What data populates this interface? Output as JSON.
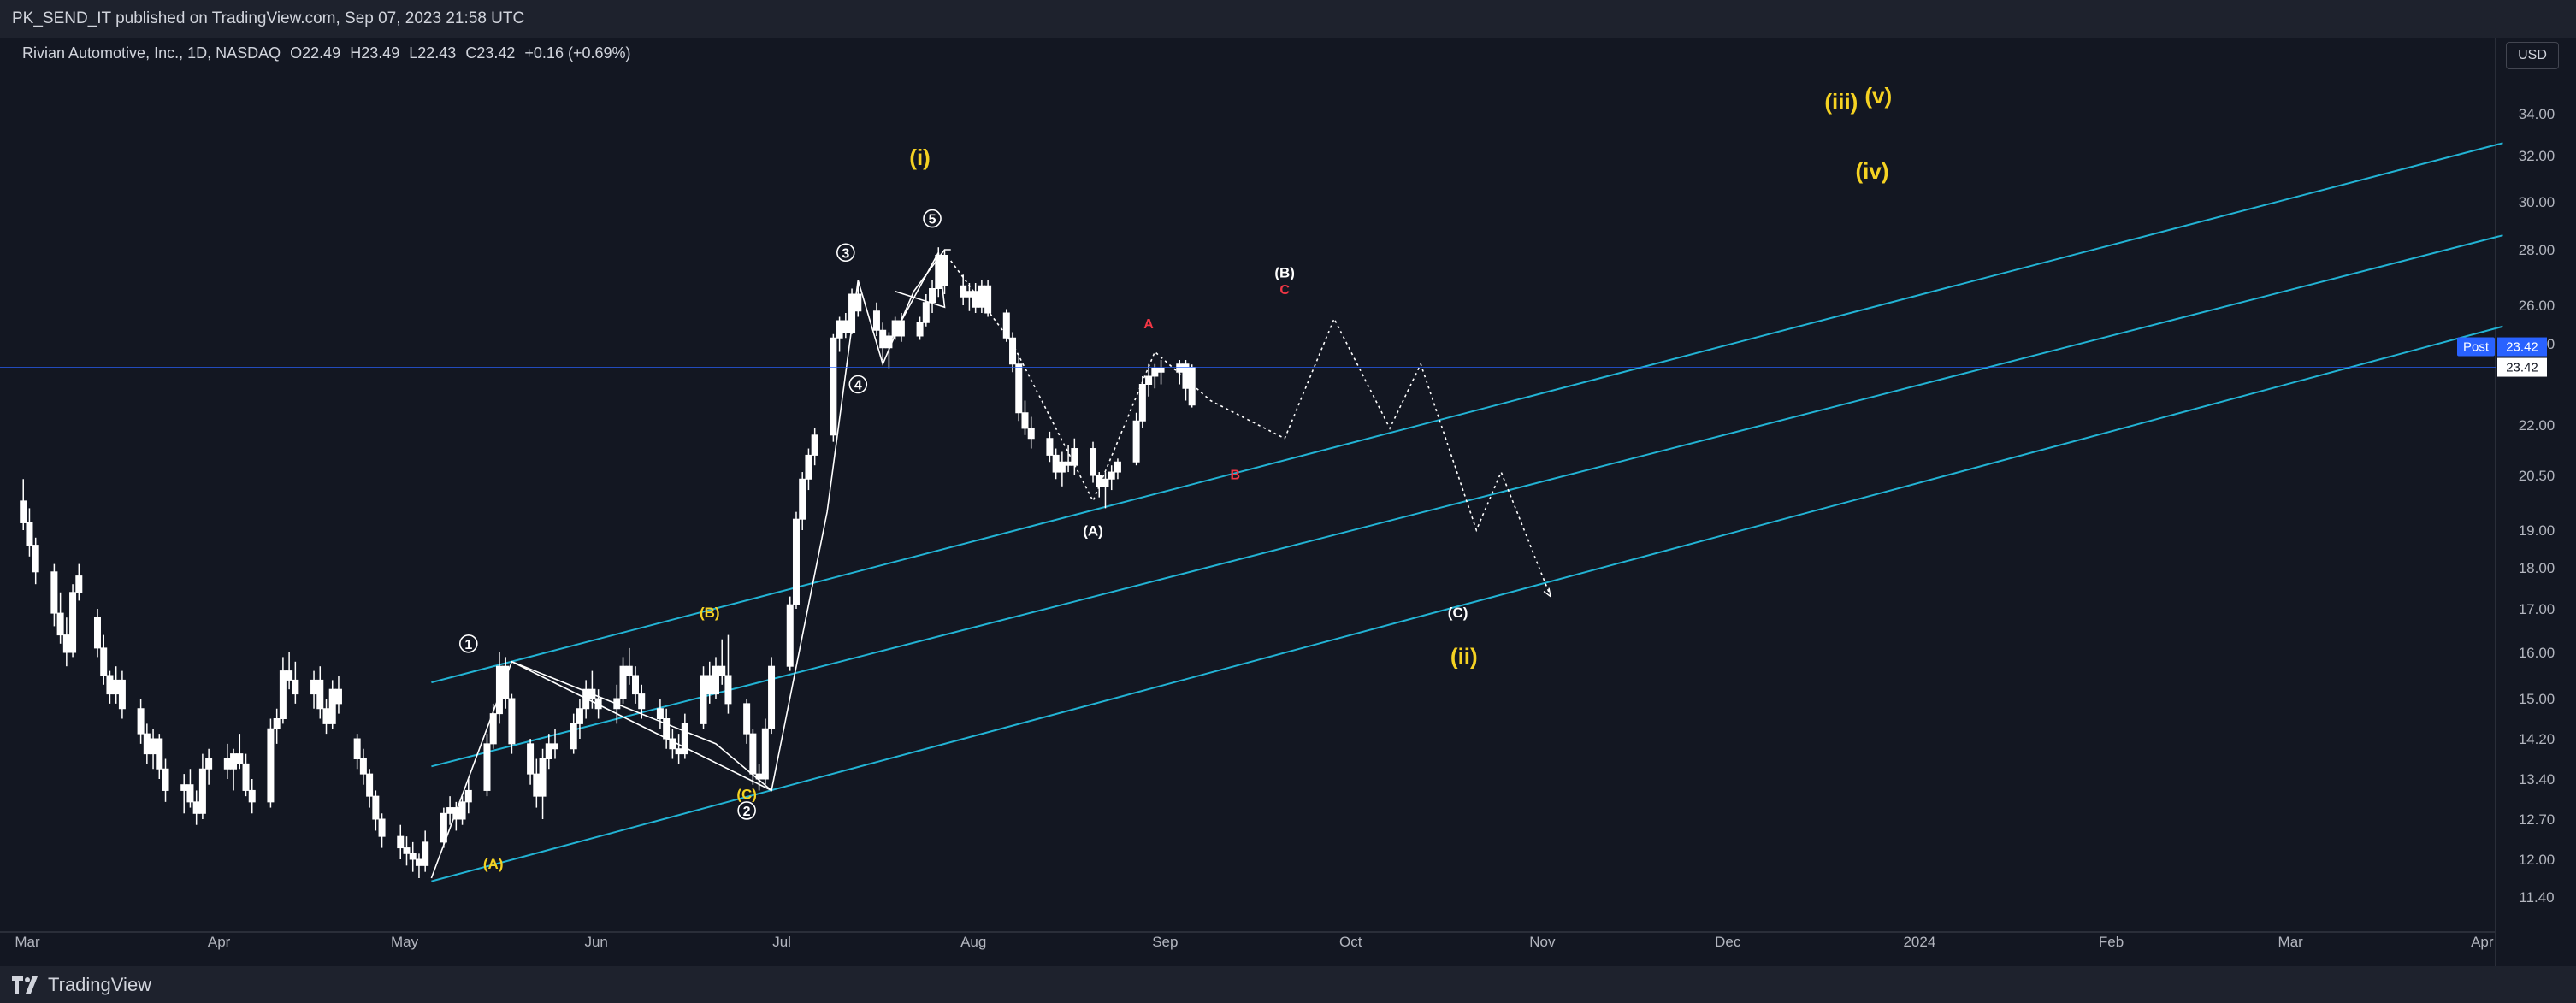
{
  "header": {
    "publish_line": "PK_SEND_IT published on TradingView.com, Sep 07, 2023 21:58 UTC"
  },
  "legend": {
    "symbol": "Rivian Automotive, Inc., 1D, NASDAQ",
    "open": "O22.49",
    "high": "H23.49",
    "low": "L22.43",
    "close": "C23.42",
    "change": "+0.16 (+0.69%)"
  },
  "currency_button": "USD",
  "price_labels": {
    "post_tag": "Post",
    "post_value": "23.42",
    "last_value": "23.42"
  },
  "footer": {
    "brand": "TradingView"
  },
  "colors": {
    "background": "#131722",
    "candle": "#ffffff",
    "channel": "#22b3d4",
    "wave_yellow": "#f5d222",
    "wave_red": "#f23645",
    "price_line": "#2962ff"
  },
  "chart_data": {
    "type": "candlestick",
    "symbol": "RIVN",
    "interval": "1D",
    "y_ticks": [
      34.0,
      32.0,
      30.0,
      28.0,
      26.0,
      24.0,
      22.0,
      20.5,
      19.0,
      18.0,
      17.0,
      16.0,
      15.0,
      14.2,
      13.4,
      12.7,
      12.0,
      11.4
    ],
    "y_tick_labels": [
      "34.00",
      "32.00",
      "30.00",
      "28.00",
      "26.00",
      "24.00",
      "22.00",
      "20.50",
      "19.00",
      "18.00",
      "17.00",
      "16.00",
      "15.00",
      "14.20",
      "13.40",
      "12.70",
      "12.00",
      "11.40"
    ],
    "x_tick_labels": [
      "Mar",
      "Apr",
      "May",
      "Jun",
      "Jul",
      "Aug",
      "Sep",
      "Oct",
      "Nov",
      "Dec",
      "2024",
      "Feb",
      "Mar",
      "Apr"
    ],
    "x_tick_days": [
      0,
      31,
      61,
      92,
      122,
      153,
      184,
      214,
      245,
      275,
      306,
      337,
      366,
      397
    ],
    "x_start_date": "2023-03-01",
    "candles": [
      [
        1,
        19.8,
        20.4,
        19.0,
        19.2
      ],
      [
        2,
        19.2,
        19.6,
        18.3,
        18.6
      ],
      [
        3,
        18.6,
        18.8,
        17.6,
        17.9
      ],
      [
        6,
        17.9,
        18.1,
        16.6,
        16.9
      ],
      [
        7,
        16.9,
        17.4,
        16.2,
        16.4
      ],
      [
        8,
        16.4,
        16.8,
        15.7,
        16.0
      ],
      [
        9,
        16.0,
        17.6,
        15.9,
        17.4
      ],
      [
        10,
        17.4,
        18.1,
        17.2,
        17.8
      ],
      [
        13,
        16.8,
        17.0,
        15.9,
        16.1
      ],
      [
        14,
        16.1,
        16.4,
        15.3,
        15.5
      ],
      [
        15,
        15.5,
        15.6,
        14.9,
        15.1
      ],
      [
        16,
        15.1,
        15.7,
        14.9,
        15.4
      ],
      [
        17,
        15.4,
        15.6,
        14.6,
        14.8
      ],
      [
        20,
        14.8,
        15.0,
        14.1,
        14.3
      ],
      [
        21,
        14.3,
        14.5,
        13.7,
        13.9
      ],
      [
        22,
        13.9,
        14.4,
        13.6,
        14.2
      ],
      [
        23,
        14.2,
        14.3,
        13.4,
        13.6
      ],
      [
        24,
        13.6,
        13.8,
        13.0,
        13.2
      ],
      [
        27,
        13.2,
        13.5,
        12.8,
        13.3
      ],
      [
        28,
        13.3,
        13.6,
        12.9,
        13.0
      ],
      [
        29,
        13.0,
        13.2,
        12.6,
        12.8
      ],
      [
        30,
        12.8,
        13.9,
        12.7,
        13.6
      ],
      [
        31,
        13.6,
        14.0,
        13.3,
        13.8
      ],
      [
        34,
        13.8,
        14.1,
        13.4,
        13.6
      ],
      [
        35,
        13.6,
        14.0,
        13.2,
        13.9
      ],
      [
        36,
        13.9,
        14.3,
        13.6,
        13.7
      ],
      [
        37,
        13.7,
        13.9,
        13.1,
        13.2
      ],
      [
        38,
        13.2,
        13.4,
        12.8,
        13.0
      ],
      [
        41,
        13.0,
        14.6,
        12.9,
        14.4
      ],
      [
        42,
        14.4,
        14.8,
        14.1,
        14.6
      ],
      [
        43,
        14.6,
        15.9,
        14.5,
        15.6
      ],
      [
        44,
        15.6,
        16.0,
        15.2,
        15.4
      ],
      [
        45,
        15.4,
        15.8,
        14.9,
        15.1
      ],
      [
        48,
        15.1,
        15.6,
        14.8,
        15.4
      ],
      [
        49,
        15.4,
        15.7,
        14.6,
        14.8
      ],
      [
        50,
        14.8,
        15.0,
        14.3,
        14.5
      ],
      [
        51,
        14.5,
        15.4,
        14.4,
        15.2
      ],
      [
        52,
        15.2,
        15.5,
        14.7,
        14.9
      ],
      [
        55,
        14.2,
        14.3,
        13.6,
        13.8
      ],
      [
        56,
        13.8,
        14.0,
        13.3,
        13.5
      ],
      [
        57,
        13.5,
        13.6,
        12.9,
        13.1
      ],
      [
        58,
        13.1,
        13.2,
        12.5,
        12.7
      ],
      [
        59,
        12.7,
        12.8,
        12.2,
        12.4
      ],
      [
        62,
        12.4,
        12.6,
        12.0,
        12.2
      ],
      [
        63,
        12.2,
        12.4,
        11.9,
        12.1
      ],
      [
        64,
        12.1,
        12.3,
        11.8,
        12.0
      ],
      [
        65,
        12.0,
        12.1,
        11.7,
        11.9
      ],
      [
        66,
        11.9,
        12.5,
        11.8,
        12.3
      ],
      [
        69,
        12.3,
        12.9,
        12.2,
        12.8
      ],
      [
        70,
        12.8,
        13.1,
        12.6,
        12.9
      ],
      [
        71,
        12.9,
        13.0,
        12.5,
        12.7
      ],
      [
        72,
        12.7,
        13.1,
        12.6,
        13.0
      ],
      [
        73,
        13.0,
        13.4,
        12.8,
        13.2
      ],
      [
        76,
        13.2,
        14.3,
        13.1,
        14.1
      ],
      [
        77,
        14.1,
        14.9,
        14.0,
        14.7
      ],
      [
        78,
        14.7,
        16.0,
        14.5,
        15.7
      ],
      [
        79,
        15.7,
        15.9,
        14.8,
        15.0
      ],
      [
        80,
        15.0,
        15.1,
        13.9,
        14.1
      ],
      [
        83,
        14.1,
        14.2,
        13.3,
        13.5
      ],
      [
        84,
        13.5,
        13.8,
        12.9,
        13.1
      ],
      [
        85,
        13.1,
        14.0,
        12.7,
        13.8
      ],
      [
        86,
        13.8,
        14.3,
        13.6,
        14.1
      ],
      [
        87,
        14.1,
        14.4,
        13.8,
        14.0
      ],
      [
        90,
        14.0,
        14.7,
        13.9,
        14.5
      ],
      [
        91,
        14.5,
        15.0,
        14.2,
        14.8
      ],
      [
        92,
        14.8,
        15.4,
        14.6,
        15.2
      ],
      [
        93,
        15.2,
        15.6,
        14.8,
        15.0
      ],
      [
        94,
        15.0,
        15.2,
        14.6,
        14.8
      ],
      [
        97,
        14.8,
        15.3,
        14.5,
        15.0
      ],
      [
        98,
        15.0,
        15.9,
        14.9,
        15.7
      ],
      [
        99,
        15.7,
        16.1,
        15.3,
        15.5
      ],
      [
        100,
        15.5,
        15.7,
        14.9,
        15.1
      ],
      [
        101,
        15.1,
        15.3,
        14.6,
        14.8
      ],
      [
        104,
        14.8,
        15.0,
        14.4,
        14.6
      ],
      [
        105,
        14.6,
        14.8,
        14.0,
        14.2
      ],
      [
        106,
        14.2,
        14.4,
        13.8,
        14.0
      ],
      [
        107,
        14.0,
        14.3,
        13.7,
        13.9
      ],
      [
        108,
        13.9,
        14.7,
        13.8,
        14.5
      ],
      [
        111,
        14.5,
        15.7,
        14.4,
        15.5
      ],
      [
        112,
        15.5,
        15.8,
        14.9,
        15.1
      ],
      [
        113,
        15.1,
        15.9,
        15.0,
        15.7
      ],
      [
        114,
        15.7,
        16.3,
        15.3,
        15.5
      ],
      [
        115,
        15.5,
        16.4,
        14.7,
        14.9
      ],
      [
        118,
        14.9,
        15.0,
        14.1,
        14.3
      ],
      [
        119,
        14.3,
        14.4,
        13.3,
        13.5
      ],
      [
        120,
        13.5,
        13.7,
        13.2,
        13.4
      ],
      [
        121,
        13.4,
        14.6,
        13.3,
        14.4
      ],
      [
        122,
        14.4,
        15.9,
        14.3,
        15.7
      ],
      [
        125,
        15.7,
        17.3,
        15.6,
        17.1
      ],
      [
        126,
        17.1,
        19.5,
        17.0,
        19.3
      ],
      [
        127,
        19.3,
        20.6,
        19.0,
        20.4
      ],
      [
        128,
        20.4,
        21.3,
        20.1,
        21.1
      ],
      [
        129,
        21.1,
        21.9,
        20.8,
        21.7
      ],
      [
        132,
        21.7,
        24.5,
        21.5,
        24.3
      ],
      [
        133,
        24.3,
        25.4,
        23.8,
        25.2
      ],
      [
        134,
        25.2,
        25.6,
        24.3,
        24.6
      ],
      [
        135,
        24.6,
        26.6,
        24.5,
        26.4
      ],
      [
        136,
        26.4,
        26.9,
        25.4,
        25.7
      ],
      [
        139,
        25.7,
        26.1,
        24.4,
        24.7
      ],
      [
        140,
        24.7,
        25.1,
        23.6,
        23.9
      ],
      [
        141,
        23.9,
        24.6,
        23.4,
        24.4
      ],
      [
        142,
        24.4,
        25.4,
        24.2,
        25.2
      ],
      [
        143,
        25.2,
        25.6,
        24.1,
        24.4
      ],
      [
        146,
        24.4,
        25.4,
        24.2,
        25.1
      ],
      [
        147,
        25.1,
        26.4,
        24.9,
        26.1
      ],
      [
        148,
        26.1,
        26.9,
        25.6,
        26.6
      ],
      [
        149,
        26.6,
        28.1,
        26.3,
        27.8
      ],
      [
        150,
        27.8,
        28.0,
        26.4,
        26.7
      ],
      [
        153,
        26.7,
        27.1,
        26.0,
        26.3
      ],
      [
        154,
        26.3,
        26.8,
        25.7,
        26.5
      ],
      [
        155,
        26.5,
        26.8,
        25.6,
        25.9
      ],
      [
        156,
        25.9,
        26.9,
        25.6,
        26.7
      ],
      [
        157,
        26.7,
        26.9,
        25.4,
        25.6
      ],
      [
        160,
        25.6,
        25.8,
        24.1,
        24.3
      ],
      [
        161,
        24.3,
        24.6,
        23.3,
        23.5
      ],
      [
        162,
        23.5,
        23.7,
        22.1,
        22.3
      ],
      [
        163,
        22.3,
        22.6,
        21.7,
        21.9
      ],
      [
        164,
        21.9,
        22.2,
        21.3,
        21.6
      ],
      [
        167,
        21.6,
        21.8,
        20.9,
        21.1
      ],
      [
        168,
        21.1,
        21.3,
        20.4,
        20.6
      ],
      [
        169,
        20.6,
        21.2,
        20.2,
        20.9
      ],
      [
        170,
        20.9,
        21.4,
        20.6,
        20.8
      ],
      [
        171,
        20.8,
        21.6,
        20.5,
        21.3
      ],
      [
        174,
        21.3,
        21.5,
        20.3,
        20.5
      ],
      [
        175,
        20.5,
        20.6,
        19.9,
        20.2
      ],
      [
        176,
        20.2,
        20.6,
        19.6,
        20.4
      ],
      [
        177,
        20.4,
        20.8,
        20.1,
        20.6
      ],
      [
        178,
        20.6,
        21.0,
        20.4,
        20.9
      ],
      [
        181,
        20.9,
        22.3,
        20.8,
        22.1
      ],
      [
        182,
        22.1,
        23.2,
        21.9,
        23.0
      ],
      [
        183,
        23.0,
        23.5,
        22.7,
        23.2
      ],
      [
        184,
        23.2,
        23.5,
        22.9,
        23.4
      ],
      [
        185,
        23.4,
        23.6,
        23.0,
        23.3
      ],
      [
        188,
        23.3,
        23.6,
        23.0,
        23.5
      ],
      [
        189,
        23.5,
        23.6,
        22.6,
        22.9
      ],
      [
        190,
        22.49,
        23.49,
        22.43,
        23.42
      ]
    ],
    "last_price": 23.42,
    "channel_lines": [
      {
        "x1": 67,
        "y1": 15.35,
        "x2": 402,
        "y2": 32.6
      },
      {
        "x1": 67,
        "y1": 13.65,
        "x2": 402,
        "y2": 28.6
      },
      {
        "x1": 67,
        "y1": 11.65,
        "x2": 402,
        "y2": 24.9
      }
    ],
    "wave_path_solid": [
      [
        67,
        11.7
      ],
      [
        80,
        15.8
      ],
      [
        122,
        13.2
      ],
      [
        131,
        19.5
      ],
      [
        136,
        26.9
      ],
      [
        140,
        23.5
      ],
      [
        145,
        26.5
      ],
      [
        150,
        28.0
      ],
      [
        151,
        28.0
      ]
    ],
    "wave_path_solid_2": [
      [
        80,
        15.8
      ],
      [
        113,
        14.1
      ],
      [
        122,
        13.2
      ]
    ],
    "wave_path_solid_3": [
      [
        141,
        24.0
      ],
      [
        149,
        27.9
      ],
      [
        150,
        25.9
      ],
      [
        142,
        26.5
      ]
    ],
    "projection_path_dotted": [
      [
        151,
        27.6
      ],
      [
        161,
        24.0
      ],
      [
        174,
        19.8
      ],
      [
        184,
        23.8
      ],
      [
        193,
        22.6
      ],
      [
        205,
        21.6
      ],
      [
        213,
        25.3
      ],
      [
        222,
        21.9
      ],
      [
        227,
        23.5
      ],
      [
        236,
        19.0
      ],
      [
        240,
        20.6
      ],
      [
        248,
        17.3
      ]
    ],
    "wave_labels": [
      {
        "text": "(i)",
        "x": 146,
        "y": 31.6,
        "color": "#f5d222",
        "size": 26
      },
      {
        "text": "(iii)",
        "x": 295,
        "y": 34.2,
        "color": "#f5d222",
        "size": 26
      },
      {
        "text": "(v)",
        "x": 301,
        "y": 34.5,
        "color": "#f5d222",
        "size": 26
      },
      {
        "text": "(iv)",
        "x": 300,
        "y": 31.0,
        "color": "#f5d222",
        "size": 26
      },
      {
        "text": "(ii)",
        "x": 234,
        "y": 15.75,
        "color": "#f5d222",
        "size": 26
      },
      {
        "text": "(B)",
        "x": 112,
        "y": 16.8,
        "color": "#f5d222",
        "size": 17
      },
      {
        "text": "(A)",
        "x": 77,
        "y": 11.85,
        "color": "#f5d222",
        "size": 17
      },
      {
        "text": "(C)",
        "x": 118,
        "y": 13.05,
        "color": "#f5d222",
        "size": 17
      },
      {
        "text": "(A)",
        "x": 174,
        "y": 18.85,
        "color": "#ffffff",
        "size": 17
      },
      {
        "text": "(B)",
        "x": 205,
        "y": 27.0,
        "color": "#ffffff",
        "size": 17
      },
      {
        "text": "(C)",
        "x": 233,
        "y": 16.8,
        "color": "#ffffff",
        "size": 17
      },
      {
        "text": "A",
        "x": 183,
        "y": 24.8,
        "color": "#f23645",
        "size": 16
      },
      {
        "text": "B",
        "x": 197,
        "y": 20.4,
        "color": "#f23645",
        "size": 16
      },
      {
        "text": "C",
        "x": 205,
        "y": 26.4,
        "color": "#f23645",
        "size": 16
      }
    ],
    "circled_labels": [
      {
        "text": "1",
        "x": 73,
        "y": 16.2
      },
      {
        "text": "2",
        "x": 118,
        "y": 12.85
      },
      {
        "text": "3",
        "x": 134,
        "y": 27.9
      },
      {
        "text": "4",
        "x": 136,
        "y": 23.0
      },
      {
        "text": "5",
        "x": 148,
        "y": 29.3
      }
    ]
  }
}
